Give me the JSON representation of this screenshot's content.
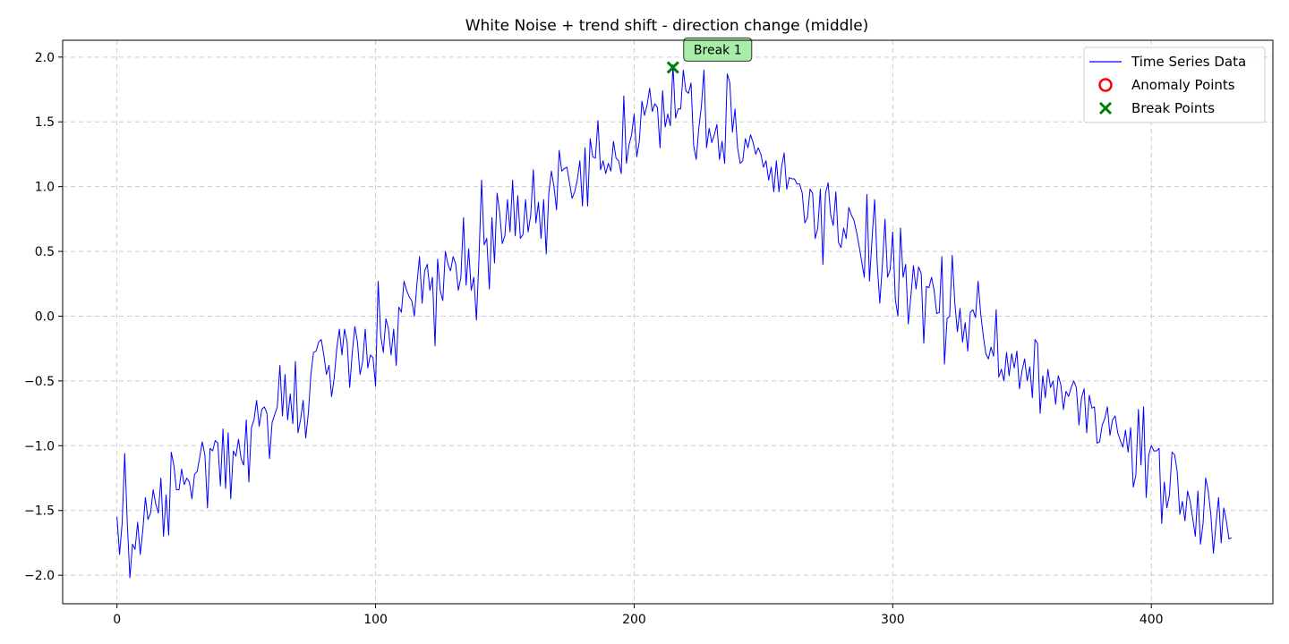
{
  "chart_data": {
    "type": "line",
    "title": "White Noise + trend shift - direction change (middle)",
    "xlabel": "",
    "ylabel": "",
    "xlim": [
      -21,
      447
    ],
    "ylim": [
      -2.22,
      2.13
    ],
    "x_ticks": [
      0,
      100,
      200,
      300,
      400
    ],
    "x_tick_labels": [
      "0",
      "100",
      "200",
      "300",
      "400"
    ],
    "y_ticks": [
      -2.0,
      -1.5,
      -1.0,
      -0.5,
      0.0,
      0.5,
      1.0,
      1.5,
      2.0
    ],
    "y_tick_labels": [
      "−2.0",
      "−1.5",
      "−1.0",
      "−0.5",
      "0.0",
      "0.5",
      "1.0",
      "1.5",
      "2.0"
    ],
    "grid": true,
    "legend_position": "top-right",
    "legend": [
      {
        "label": "Time Series Data",
        "marker": "line",
        "color": "#0000ff"
      },
      {
        "label": "Anomaly Points",
        "marker": "circle",
        "color": "#ff0000"
      },
      {
        "label": "Break Points",
        "marker": "x",
        "color": "#008000"
      }
    ],
    "series": [
      {
        "name": "Time Series Data",
        "color": "#0000ff",
        "x_start": 0,
        "x_step": 1,
        "values": [
          -1.55,
          -1.84,
          -1.6,
          -1.06,
          -1.6,
          -2.02,
          -1.76,
          -1.8,
          -1.59,
          -1.84,
          -1.65,
          -1.4,
          -1.57,
          -1.52,
          -1.34,
          -1.45,
          -1.52,
          -1.25,
          -1.7,
          -1.38,
          -1.69,
          -1.05,
          -1.15,
          -1.34,
          -1.34,
          -1.18,
          -1.3,
          -1.25,
          -1.28,
          -1.41,
          -1.22,
          -1.2,
          -1.09,
          -0.97,
          -1.07,
          -1.48,
          -1.02,
          -1.04,
          -0.96,
          -0.98,
          -1.31,
          -0.87,
          -1.33,
          -0.9,
          -1.41,
          -1.04,
          -1.08,
          -0.95,
          -1.1,
          -1.15,
          -0.8,
          -1.28,
          -0.86,
          -0.8,
          -0.65,
          -0.85,
          -0.72,
          -0.7,
          -0.75,
          -1.1,
          -0.82,
          -0.76,
          -0.7,
          -0.38,
          -0.77,
          -0.45,
          -0.8,
          -0.6,
          -0.83,
          -0.35,
          -0.9,
          -0.8,
          -0.65,
          -0.94,
          -0.75,
          -0.45,
          -0.28,
          -0.27,
          -0.2,
          -0.18,
          -0.3,
          -0.45,
          -0.38,
          -0.62,
          -0.48,
          -0.25,
          -0.1,
          -0.3,
          -0.1,
          -0.2,
          -0.55,
          -0.28,
          -0.08,
          -0.2,
          -0.45,
          -0.35,
          -0.1,
          -0.4,
          -0.3,
          -0.32,
          -0.54,
          0.27,
          -0.15,
          -0.28,
          -0.02,
          -0.1,
          -0.3,
          -0.1,
          -0.38,
          0.07,
          0.03,
          0.27,
          0.2,
          0.15,
          0.12,
          0.0,
          0.25,
          0.46,
          0.1,
          0.35,
          0.4,
          0.2,
          0.3,
          -0.23,
          0.44,
          0.2,
          0.12,
          0.5,
          0.4,
          0.35,
          0.46,
          0.4,
          0.2,
          0.3,
          0.76,
          0.24,
          0.52,
          0.2,
          0.3,
          -0.03,
          0.45,
          1.05,
          0.55,
          0.6,
          0.21,
          0.76,
          0.41,
          0.95,
          0.8,
          0.56,
          0.62,
          0.9,
          0.65,
          1.05,
          0.62,
          0.93,
          0.6,
          0.63,
          0.9,
          0.65,
          0.78,
          1.13,
          0.72,
          0.88,
          0.6,
          0.9,
          0.48,
          0.95,
          1.12,
          1.0,
          0.82,
          1.28,
          1.12,
          1.14,
          1.15,
          1.03,
          0.91,
          0.96,
          1.05,
          1.2,
          0.85,
          1.3,
          0.85,
          1.37,
          1.23,
          1.22,
          1.51,
          1.13,
          1.2,
          1.1,
          1.18,
          1.12,
          1.35,
          1.22,
          1.2,
          1.1,
          1.7,
          1.18,
          1.32,
          1.4,
          1.56,
          1.23,
          1.35,
          1.66,
          1.55,
          1.63,
          1.76,
          1.58,
          1.64,
          1.61,
          1.3,
          1.74,
          1.46,
          1.56,
          1.47,
          1.94,
          1.53,
          1.6,
          1.6,
          1.9,
          1.74,
          1.72,
          1.8,
          1.32,
          1.21,
          1.45,
          1.62,
          1.9,
          1.3,
          1.45,
          1.34,
          1.4,
          1.48,
          1.21,
          1.35,
          1.18,
          1.87,
          1.8,
          1.42,
          1.6,
          1.3,
          1.18,
          1.2,
          1.37,
          1.3,
          1.4,
          1.34,
          1.25,
          1.3,
          1.25,
          1.15,
          1.2,
          1.05,
          1.15,
          0.96,
          1.2,
          0.96,
          1.15,
          1.26,
          0.98,
          1.07,
          1.06,
          1.06,
          1.02,
          1.02,
          0.95,
          0.72,
          0.76,
          0.98,
          0.95,
          0.6,
          0.68,
          0.98,
          0.4,
          0.95,
          1.03,
          0.78,
          0.7,
          0.96,
          0.57,
          0.53,
          0.68,
          0.6,
          0.84,
          0.78,
          0.74,
          0.65,
          0.54,
          0.42,
          0.3,
          0.94,
          0.27,
          0.6,
          0.9,
          0.4,
          0.1,
          0.4,
          0.75,
          0.3,
          0.36,
          0.65,
          0.13,
          0.0,
          0.68,
          0.3,
          0.4,
          -0.06,
          0.15,
          0.39,
          0.21,
          0.38,
          0.33,
          -0.21,
          0.23,
          0.22,
          0.3,
          0.2,
          0.02,
          0.03,
          0.46,
          -0.37,
          -0.02,
          0.0,
          0.47,
          0.1,
          -0.12,
          0.06,
          -0.2,
          -0.05,
          -0.27,
          0.03,
          0.05,
          -0.01,
          0.27,
          0.02,
          -0.15,
          -0.29,
          -0.33,
          -0.24,
          -0.31,
          0.05,
          -0.47,
          -0.41,
          -0.5,
          -0.28,
          -0.46,
          -0.29,
          -0.4,
          -0.27,
          -0.56,
          -0.42,
          -0.33,
          -0.5,
          -0.39,
          -0.63,
          -0.18,
          -0.21,
          -0.75,
          -0.46,
          -0.63,
          -0.41,
          -0.55,
          -0.5,
          -0.68,
          -0.46,
          -0.53,
          -0.72,
          -0.58,
          -0.62,
          -0.55,
          -0.5,
          -0.55,
          -0.84,
          -0.63,
          -0.56,
          -0.9,
          -0.61,
          -0.71,
          -0.7,
          -0.98,
          -0.97,
          -0.84,
          -0.79,
          -0.7,
          -0.92,
          -0.8,
          -0.77,
          -0.9,
          -0.96,
          -1.01,
          -0.88,
          -1.05,
          -0.86,
          -1.32,
          -1.23,
          -0.72,
          -1.15,
          -0.7,
          -1.4,
          -1.07,
          -1.0,
          -1.04,
          -1.04,
          -1.02,
          -1.6,
          -1.28,
          -1.48,
          -1.38,
          -1.05,
          -1.07,
          -1.2,
          -1.53,
          -1.43,
          -1.58,
          -1.35,
          -1.43,
          -1.56,
          -1.7,
          -1.35,
          -1.76,
          -1.6,
          -1.25,
          -1.35,
          -1.53,
          -1.83,
          -1.6,
          -1.4,
          -1.75,
          -1.48,
          -1.58,
          -1.72,
          -1.71
        ]
      }
    ],
    "anomaly_points": [],
    "break_points": [
      {
        "x": 215,
        "y": 1.92,
        "label": "Break 1"
      }
    ]
  }
}
